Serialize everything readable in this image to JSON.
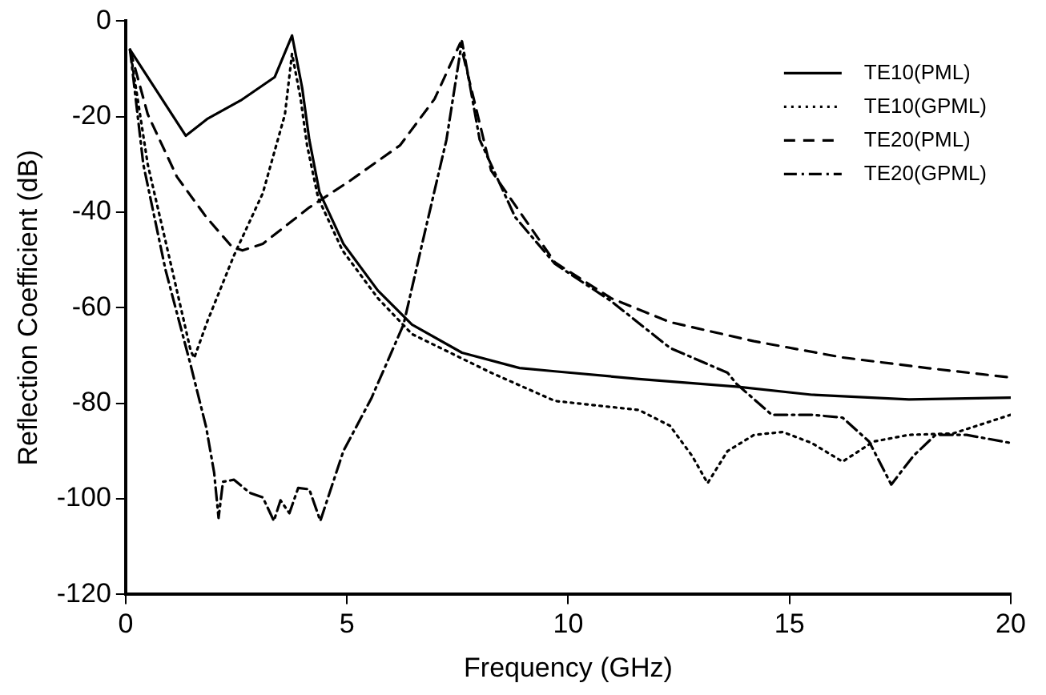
{
  "chart_data": {
    "type": "line",
    "xlabel": "Frequency (GHz)",
    "ylabel": "Reflection Coefficient (dB)",
    "xlim": [
      0,
      20
    ],
    "xticks": [
      0,
      5,
      10,
      15,
      20
    ],
    "ylim": [
      -120,
      0
    ],
    "yticks": [
      -120,
      -100,
      -80,
      -60,
      -40,
      -20,
      0
    ],
    "grid": false,
    "legend": "top right",
    "marker": "none",
    "series": [
      {
        "name": "TE10(PML)",
        "color": "#000000",
        "line_style": "solid",
        "x": [
          0.1,
          1.36,
          1.84,
          2.6,
          3.37,
          3.76,
          3.99,
          4.15,
          4.38,
          4.92,
          5.7,
          6.47,
          7.6,
          8.9,
          9.7,
          11.6,
          13.8,
          15.5,
          17.7,
          20
        ],
        "values": [
          -6,
          -24,
          -20.5,
          -16.6,
          -11.7,
          -3,
          -14,
          -24.8,
          -35.8,
          -46.6,
          -56.4,
          -63.5,
          -69.4,
          -72.6,
          -73.3,
          -74.9,
          -76.5,
          -78.2,
          -79.2,
          -78.8
        ]
      },
      {
        "name": "TE10(GPML)",
        "color": "#000000",
        "line_style": "dotted",
        "x": [
          0.1,
          0.5,
          1.05,
          1.47,
          1.55,
          1.84,
          2.45,
          3.1,
          3.6,
          3.76,
          3.95,
          4.1,
          4.35,
          4.9,
          5.7,
          6.47,
          8.26,
          9.7,
          11.6,
          12.3,
          12.8,
          13.15,
          13.6,
          14.2,
          14.85,
          15.5,
          16.2,
          16.9,
          17.7,
          18.7,
          20
        ],
        "values": [
          -6,
          -30,
          -52,
          -69,
          -70.5,
          -63,
          -49,
          -36,
          -19.5,
          -6.8,
          -16,
          -26,
          -37,
          -48,
          -58,
          -65.5,
          -73.6,
          -79.5,
          -81.4,
          -84.7,
          -91,
          -96.7,
          -90,
          -86.6,
          -86,
          -88.3,
          -92.2,
          -88,
          -86.6,
          -86.3,
          -82.4
        ]
      },
      {
        "name": "TE20(PML)",
        "color": "#000000",
        "line_style": "dashed",
        "x": [
          0.1,
          0.5,
          1.16,
          1.82,
          2.4,
          2.64,
          3.1,
          4.15,
          5.04,
          6.2,
          6.98,
          7.56,
          8.26,
          9.7,
          10.97,
          12.3,
          14.2,
          16.2,
          18.1,
          20
        ],
        "values": [
          -6,
          -19.5,
          -32.6,
          -41,
          -47.2,
          -48,
          -46.6,
          -39,
          -33.6,
          -26,
          -16.3,
          -4.6,
          -31.3,
          -50.5,
          -58,
          -63,
          -67,
          -70.4,
          -72.6,
          -74.6
        ]
      },
      {
        "name": "TE20(GPML)",
        "color": "#000000",
        "line_style": "dashdot",
        "x": [
          0.1,
          0.4,
          0.9,
          1.47,
          1.82,
          2.0,
          2.1,
          2.2,
          2.45,
          2.8,
          3.1,
          3.35,
          3.5,
          3.7,
          3.9,
          4.15,
          4.4,
          4.92,
          5.55,
          6.28,
          6.7,
          7.25,
          7.6,
          8.0,
          8.8,
          9.7,
          10.97,
          12.3,
          13.6,
          13.8,
          14.6,
          15.5,
          16.2,
          16.8,
          17.3,
          17.8,
          18.3,
          19.0,
          20
        ],
        "values": [
          -6,
          -30,
          -52,
          -72,
          -85,
          -94.5,
          -104,
          -96.4,
          -96,
          -98.7,
          -99.7,
          -104.6,
          -100.3,
          -103,
          -97.7,
          -98,
          -104.6,
          -90,
          -79,
          -63.5,
          -46.6,
          -24.8,
          -4.2,
          -24.8,
          -41,
          -50.8,
          -58.6,
          -68.4,
          -73.6,
          -75.9,
          -82.4,
          -82.4,
          -83,
          -88,
          -97,
          -91,
          -86.6,
          -86.6,
          -88.3
        ]
      }
    ]
  }
}
